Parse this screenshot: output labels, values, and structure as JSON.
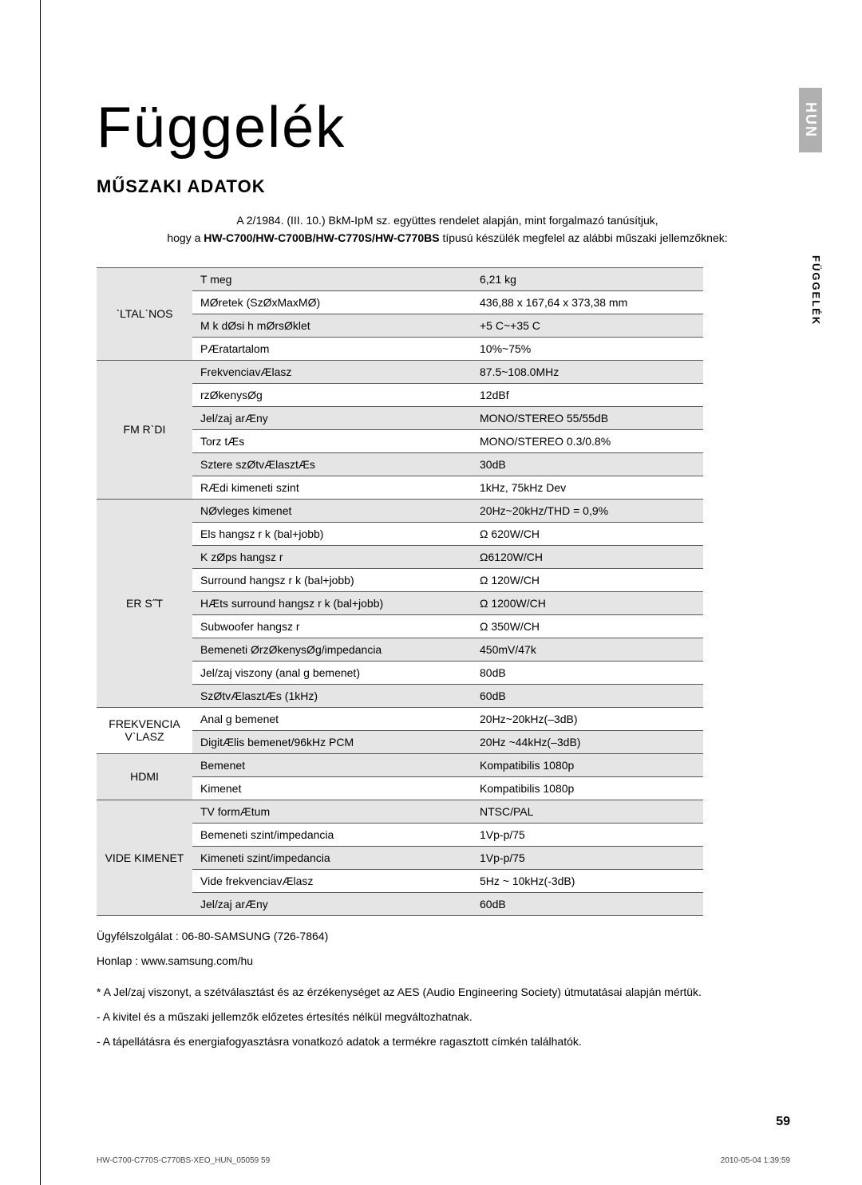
{
  "lang_tab": "HUN",
  "title": "Függelék",
  "subtitle": "MŰSZAKI ADATOK",
  "intro_line1": "A 2/1984. (III. 10.) BkM-IpM sz. együttes rendelet alapján, mint forgalmazó tanúsítjuk,",
  "intro_line2_prefix": "hogy a ",
  "intro_models": "HW-C700/HW-C700B/HW-C770S/HW-C770BS",
  "intro_line2_suffix": " típusú készülék megfelel az alábbi műszaki jellemzőknek:",
  "side_tab": "FÜGGELÉK",
  "sections": [
    {
      "head": "`LTAL`NOS",
      "rows": [
        {
          "l": "T meg",
          "v": "6,21 kg",
          "shade": true
        },
        {
          "l": "MØretek (SzØxMaxMØ)",
          "v": "436,88 x 167,64 x 373,38 mm"
        },
        {
          "l": "M k dØsi h mØrsØklet",
          "v": "+5 C~+35 C",
          "shade": true
        },
        {
          "l": "PÆratartalom",
          "v": "10%~75%"
        }
      ]
    },
    {
      "head": "FM R`DI",
      "rows": [
        {
          "l": "FrekvenciavÆlasz",
          "v": "87.5~108.0MHz",
          "shade": true
        },
        {
          "l": "rzØkenysØg",
          "v": "12dBf"
        },
        {
          "l": "Jel/zaj arÆny",
          "v": "MONO/STEREO 55/55dB",
          "shade": true
        },
        {
          "l": "Torz tÆs",
          "v": "MONO/STEREO 0.3/0.8%"
        },
        {
          "l": "Sztere  szØtvÆlasztÆs",
          "v": "30dB",
          "shade": true
        },
        {
          "l": "RÆdi  kimeneti szint",
          "v": "1kHz, 75kHz Dev"
        }
      ]
    },
    {
      "head": "ER S˝T",
      "rows": [
        {
          "l": "NØvleges kimenet",
          "v": "20Hz~20kHz/THD = 0,9%",
          "shade": true
        },
        {
          "l": "Els  hangsz r k (bal+jobb)",
          "v": "Ω 620W/CH"
        },
        {
          "l": "K zØps  hangsz r",
          "v": "Ω6120W/CH",
          "shade": true
        },
        {
          "l": "Surround hangsz r k (bal+jobb)",
          "v": "Ω 120W/CH"
        },
        {
          "l": "HÆts  surround hangsz r k (bal+jobb)",
          "v": "Ω 1200W/CH",
          "shade": true
        },
        {
          "l": "Subwoofer hangsz r",
          "v": "Ω 350W/CH"
        },
        {
          "l": "Bemeneti ØrzØkenysØg/impedancia",
          "v": "450mV/47k",
          "shade": true
        },
        {
          "l": "Jel/zaj viszony (anal g bemenet)",
          "v": "80dB"
        },
        {
          "l": "SzØtvÆlasztÆs (1kHz)",
          "v": "60dB",
          "shade": true
        }
      ]
    },
    {
      "head": "FREKVENCIA V`LASZ",
      "rows": [
        {
          "l": "Anal g bemenet",
          "v": "20Hz~20kHz(–3dB)"
        },
        {
          "l": "DigitÆlis bemenet/96kHz PCM",
          "v": "20Hz ~44kHz(–3dB)",
          "shade": true
        }
      ]
    },
    {
      "head": "HDMI",
      "rows": [
        {
          "l": "Bemenet",
          "v": "Kompatibilis 1080p",
          "shade": true
        },
        {
          "l": "Kimenet",
          "v": "Kompatibilis 1080p"
        }
      ]
    },
    {
      "head": "VIDE  KIMENET",
      "rows": [
        {
          "l": "TV formÆtum",
          "v": "NTSC/PAL",
          "shade": true
        },
        {
          "l": "Bemeneti szint/impedancia",
          "v": "1Vp-p/75"
        },
        {
          "l": "Kimeneti szint/impedancia",
          "v": "1Vp-p/75",
          "shade": true
        },
        {
          "l": "Vide  frekvenciavÆlasz",
          "v": "5Hz ~ 10kHz(-3dB)"
        },
        {
          "l": "Jel/zaj arÆny",
          "v": "60dB",
          "shade": true
        }
      ]
    }
  ],
  "notes": [
    "Ügyfélszolgálat : 06-80-SAMSUNG (726-7864)",
    "Honlap : www.samsung.com/hu",
    "* A Jel/zaj viszonyt, a szétválasztást és az érzékenységet az AES (Audio Engineering Society) útmutatásai alapján mértük.",
    "- A kivitel és a műszaki jellemzők előzetes értesítés nélkül megváltozhatnak.",
    "- A tápellátásra és energiafogyasztásra vonatkozó adatok a termékre ragasztott címkén találhatók."
  ],
  "page_number": "59",
  "footer_left": "HW-C700-C770S-C770BS-XEO_HUN_05059   59",
  "footer_right": "2010-05-04   1:39:59"
}
